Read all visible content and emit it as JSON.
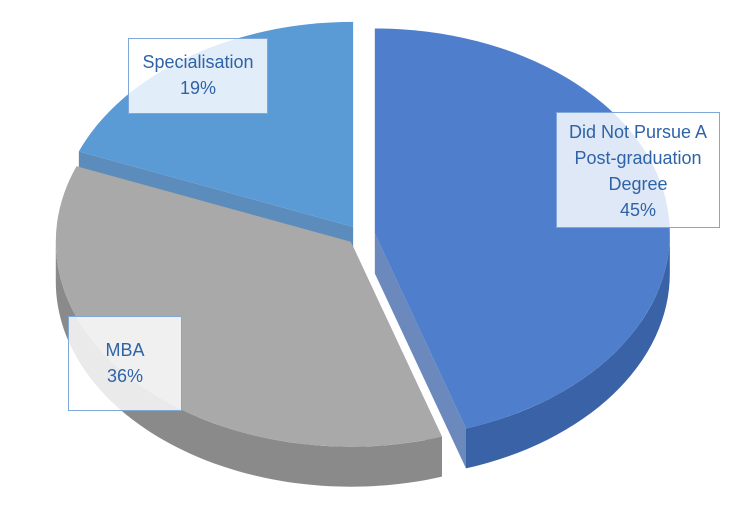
{
  "chart_data": {
    "type": "pie",
    "style": "3d-exploded",
    "slices": [
      {
        "label": "Did Not Pursue A Post-graduation Degree",
        "label_lines": [
          "Did Not Pursue A",
          "Post-graduation",
          "Degree"
        ],
        "percent_text": "45%",
        "value": 45,
        "color": "#4f7fcc",
        "side_color": "#3a62a6"
      },
      {
        "label": "MBA",
        "label_lines": [
          "MBA"
        ],
        "percent_text": "36%",
        "value": 36,
        "color": "#a9a9a9",
        "side_color": "#8a8a8a"
      },
      {
        "label": "Specialisation",
        "label_lines": [
          "Specialisation"
        ],
        "percent_text": "19%",
        "value": 19,
        "color": "#5b9bd5",
        "side_color": "#4a80b5"
      }
    ]
  }
}
